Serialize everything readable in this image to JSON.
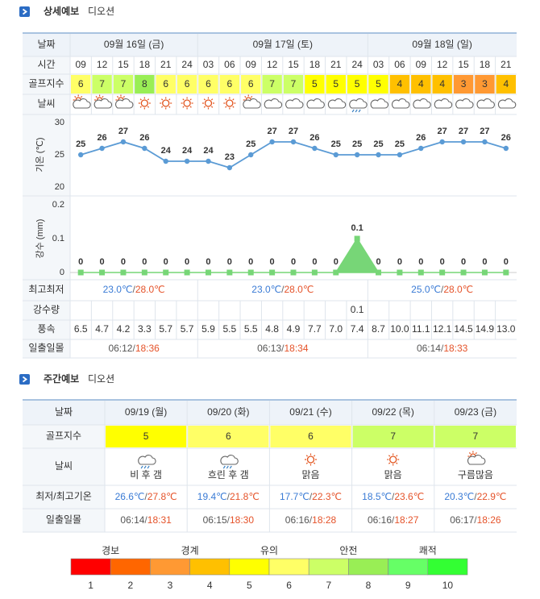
{
  "detail": {
    "title": "상세예보",
    "location": "디오션",
    "labels": {
      "date": "날짜",
      "time": "시간",
      "golf": "골프지수",
      "weather": "날씨",
      "minmax": "최고최저",
      "rain": "강수량",
      "wind": "풍속",
      "sun": "일출일몰"
    },
    "separator": "/",
    "days": [
      {
        "date": "09월 16일 (금)",
        "times": [
          "09",
          "12",
          "15",
          "18",
          "21",
          "24"
        ],
        "min": "23.0℃",
        "max": "28.0℃",
        "sunrise": "06:12",
        "sunset": "18:36"
      },
      {
        "date": "09월 17일 (토)",
        "times": [
          "03",
          "06",
          "09",
          "12",
          "15",
          "18",
          "21",
          "24"
        ],
        "min": "23.0℃",
        "max": "28.0℃",
        "sunrise": "06:13",
        "sunset": "18:34"
      },
      {
        "date": "09월 18일 (일)",
        "times": [
          "03",
          "06",
          "09",
          "12",
          "15",
          "18",
          "21"
        ],
        "min": "25.0℃",
        "max": "28.0℃",
        "sunrise": "06:14",
        "sunset": "18:33"
      }
    ],
    "golf": [
      6,
      7,
      7,
      8,
      6,
      6,
      6,
      6,
      6,
      7,
      7,
      5,
      5,
      5,
      5,
      4,
      4,
      4,
      3,
      3,
      4
    ],
    "rain": [
      null,
      null,
      null,
      null,
      null,
      null,
      null,
      null,
      null,
      null,
      null,
      null,
      null,
      0.1,
      null,
      null,
      null,
      null,
      null,
      null,
      null
    ],
    "wind": [
      "6.5",
      "4.7",
      "4.2",
      "3.3",
      "5.7",
      "5.7",
      "5.9",
      "5.5",
      "5.5",
      "4.8",
      "4.9",
      "7.7",
      "7.0",
      "7.4",
      "8.7",
      "10.0",
      "11.1",
      "12.1",
      "14.5",
      "14.9",
      "13.0"
    ]
  },
  "chart_data": [
    {
      "type": "line",
      "ylabel": "기온 (℃)",
      "color": "#5b9bd5",
      "values": [
        25,
        26,
        27,
        26,
        24,
        24,
        24,
        23,
        25,
        27,
        27,
        26,
        25,
        25,
        25,
        25,
        26,
        27,
        27,
        27,
        26
      ],
      "ylim": [
        20,
        30
      ],
      "yticks": [
        20,
        25,
        30
      ]
    },
    {
      "type": "area",
      "ylabel": "강수 (mm)",
      "color": "#77d677",
      "values": [
        0,
        0,
        0,
        0,
        0,
        0,
        0,
        0,
        0,
        0,
        0,
        0,
        0,
        0.1,
        0,
        0,
        0,
        0,
        0,
        0,
        0
      ],
      "ylim": [
        0,
        0.2
      ],
      "yticks": [
        0,
        0.1,
        0.2
      ]
    }
  ],
  "weekly": {
    "title": "주간예보",
    "location": "디오션",
    "labels": {
      "date": "날짜",
      "golf": "골프지수",
      "weather": "날씨",
      "temp": "최저/최고기온",
      "sun": "일출일몰"
    },
    "days": [
      {
        "date": "09/19 (월)",
        "golf": 5,
        "weather": "비 후 갬",
        "min": "26.6℃",
        "max": "27.8℃",
        "sunrise": "06:14",
        "sunset": "18:31"
      },
      {
        "date": "09/20 (화)",
        "golf": 6,
        "weather": "흐린 후 갬",
        "min": "19.4℃",
        "max": "21.8℃",
        "sunrise": "06:15",
        "sunset": "18:30"
      },
      {
        "date": "09/21 (수)",
        "golf": 6,
        "weather": "맑음",
        "min": "17.7℃",
        "max": "22.3℃",
        "sunrise": "06:16",
        "sunset": "18:28"
      },
      {
        "date": "09/22 (목)",
        "golf": 7,
        "weather": "맑음",
        "min": "18.5℃",
        "max": "23.6℃",
        "sunrise": "06:16",
        "sunset": "18:27"
      },
      {
        "date": "09/23 (금)",
        "golf": 7,
        "weather": "구름많음",
        "min": "20.3℃",
        "max": "22.9℃",
        "sunrise": "06:17",
        "sunset": "18:26"
      }
    ]
  },
  "legend": {
    "labels": [
      "경보",
      "경계",
      "유의",
      "안전",
      "쾌적"
    ],
    "levels": [
      1,
      2,
      3,
      4,
      5,
      6,
      7,
      8,
      9,
      10
    ],
    "colors": [
      "#ff0000",
      "#ff6600",
      "#ff9933",
      "#ffc000",
      "#ffff00",
      "#ffff66",
      "#ccff66",
      "#99ee55",
      "#66ff66",
      "#33ff33"
    ]
  }
}
